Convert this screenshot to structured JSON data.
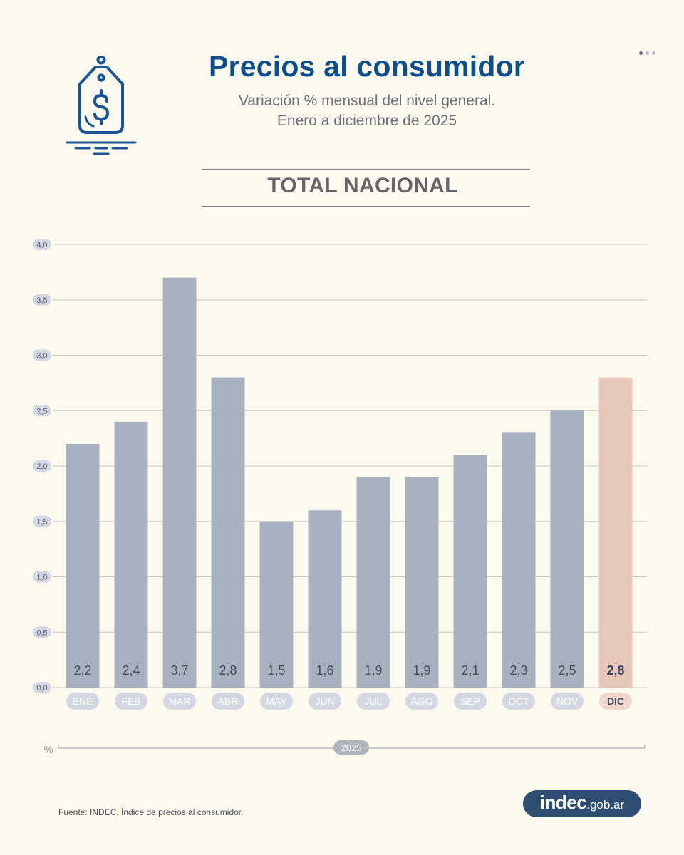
{
  "header": {
    "title": "Precios al consumidor",
    "subtitle_line1": "Variación % mensual del nivel general.",
    "subtitle_line2": "Enero a diciembre de 2025",
    "section": "TOTAL NACIONAL"
  },
  "icon": "price-tag-dollar-icon",
  "colors": {
    "title": "#0f4e8c",
    "bar": "#a7b1bf",
    "bar_highlight": "#e7c8b8",
    "label_pill": "#d3d8e3",
    "label_pill_highlight": "#f0d8cc",
    "background": "#fcfaef",
    "brand": "#2f4c72"
  },
  "chart_data": {
    "type": "bar",
    "categories": [
      "ENE",
      "FEB",
      "MAR",
      "ABR",
      "MAY",
      "JUN",
      "JUL",
      "AGO",
      "SEP",
      "OCT",
      "NOV",
      "DIC"
    ],
    "values": [
      2.2,
      2.4,
      3.7,
      2.8,
      1.5,
      1.6,
      1.9,
      1.9,
      2.1,
      2.3,
      2.5,
      2.8
    ],
    "value_labels": [
      "2,2",
      "2,4",
      "3,7",
      "2,8",
      "1,5",
      "1,6",
      "1,9",
      "1,9",
      "2,1",
      "2,3",
      "2,5",
      "2,8"
    ],
    "highlight_index": 11,
    "ylim": [
      0,
      4
    ],
    "yticks": [
      0,
      0.5,
      1,
      1.5,
      2,
      2.5,
      3,
      3.5,
      4
    ],
    "ytick_labels": [
      "0,0",
      "0,5",
      "1,0",
      "1,5",
      "2,0",
      "2,5",
      "3,0",
      "3,5",
      "4,0"
    ],
    "ylabel": "%",
    "xlabel": "2025",
    "grid": true
  },
  "footer": {
    "source": "Fuente: INDEC, Índice de precios al consumidor.",
    "brand_main": "indec",
    "brand_suffix": ".gob.ar"
  }
}
